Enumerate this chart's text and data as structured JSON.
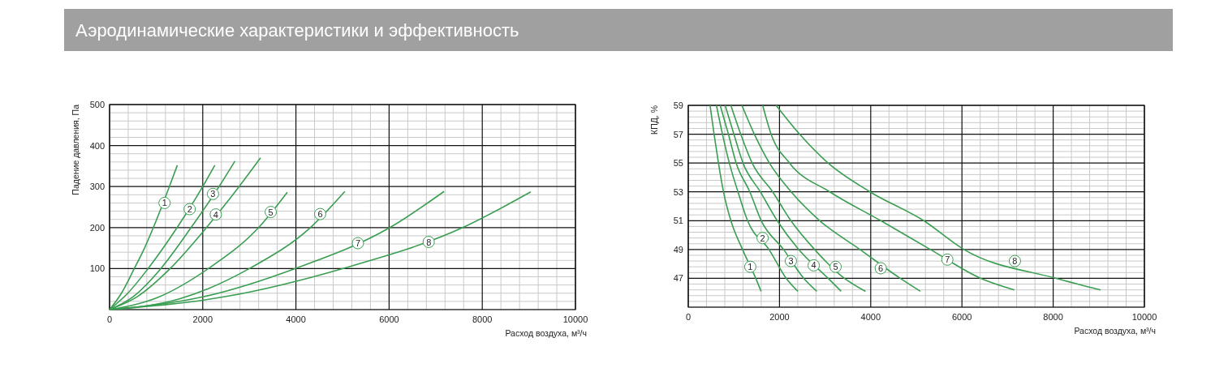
{
  "chart_data": [
    {
      "type": "line",
      "title": "Аэродинамические характеристики и эффективность",
      "xlabel": "Расход воздуха, м³/ч",
      "ylabel": "Падение давления, Па",
      "grid": true,
      "annotations": [
        {
          "text": "1",
          "x": 1180,
          "y": 260
        },
        {
          "text": "2",
          "x": 1720,
          "y": 245
        },
        {
          "text": "3",
          "x": 2220,
          "y": 282
        },
        {
          "text": "4",
          "x": 2280,
          "y": 232
        },
        {
          "text": "5",
          "x": 3460,
          "y": 238
        },
        {
          "text": "6",
          "x": 4520,
          "y": 233
        },
        {
          "text": "7",
          "x": 5330,
          "y": 162
        },
        {
          "text": "8",
          "x": 6850,
          "y": 165
        }
      ],
      "xlim": [
        0,
        10000
      ],
      "ylim": [
        0,
        500
      ],
      "xticks": [
        0,
        {
          "value": 400,
          "label": null
        },
        {
          "value": 800,
          "label": null
        },
        {
          "value": 1200,
          "label": null
        },
        {
          "value": 1600,
          "label": null
        },
        2000,
        {
          "value": 2400,
          "label": null
        },
        {
          "value": 2800,
          "label": null
        },
        {
          "value": 3200,
          "label": null
        },
        {
          "value": 3600,
          "label": null
        },
        4000,
        {
          "value": 4400,
          "label": null
        },
        {
          "value": 4800,
          "label": null
        },
        {
          "value": 5200,
          "label": null
        },
        {
          "value": 5600,
          "label": null
        },
        6000,
        {
          "value": 6400,
          "label": null
        },
        {
          "value": 6800,
          "label": null
        },
        {
          "value": 7200,
          "label": null
        },
        {
          "value": 7600,
          "label": null
        },
        8000,
        {
          "value": 8400,
          "label": null
        },
        {
          "value": 8800,
          "label": null
        },
        {
          "value": 9200,
          "label": null
        },
        {
          "value": 9600,
          "label": null
        },
        10000
      ],
      "yticks": [
        {
          "value": 0,
          "label": null
        },
        {
          "value": 20,
          "label": null
        },
        {
          "value": 40,
          "label": null
        },
        {
          "value": 60,
          "label": null
        },
        {
          "value": 80,
          "label": null
        },
        100,
        {
          "value": 120,
          "label": null
        },
        {
          "value": 140,
          "label": null
        },
        {
          "value": 160,
          "label": null
        },
        {
          "value": 180,
          "label": null
        },
        200,
        {
          "value": 220,
          "label": null
        },
        {
          "value": 240,
          "label": null
        },
        {
          "value": 260,
          "label": null
        },
        {
          "value": 280,
          "label": null
        },
        300,
        {
          "value": 320,
          "label": null
        },
        {
          "value": 340,
          "label": null
        },
        {
          "value": 360,
          "label": null
        },
        {
          "value": 380,
          "label": null
        },
        400,
        {
          "value": 420,
          "label": null
        },
        {
          "value": 440,
          "label": null
        },
        {
          "value": 460,
          "label": null
        },
        {
          "value": 480,
          "label": null
        },
        500
      ],
      "series": [
        {
          "color": "#3a9e52",
          "x": [
            0,
            250,
            530,
            750,
            940,
            1300,
            1454
          ],
          "values": [
            0,
            39,
            100,
            150,
            200,
            305,
            352
          ]
        },
        {
          "color": "#3a9e52",
          "x": [
            0,
            400,
            826,
            1450,
            2000,
            2260
          ],
          "values": [
            0,
            41,
            100,
            200,
            300,
            352
          ]
        },
        {
          "color": "#3a9e52",
          "x": [
            0,
            500,
            1100,
            1750,
            2350,
            2690
          ],
          "values": [
            0,
            31,
            100,
            200,
            300,
            362
          ]
        },
        {
          "color": "#3a9e52",
          "x": [
            0,
            600,
            1300,
            2080,
            2780,
            3240
          ],
          "values": [
            0,
            32,
            100,
            200,
            300,
            370
          ]
        },
        {
          "color": "#3a9e52",
          "x": [
            0,
            1000,
            2120,
            3200,
            3815
          ],
          "values": [
            0,
            28,
            100,
            200,
            286
          ]
        },
        {
          "color": "#3a9e52",
          "x": [
            0,
            1500,
            3000,
            4310,
            5050
          ],
          "values": [
            0,
            26,
            100,
            200,
            288
          ]
        },
        {
          "color": "#3a9e52",
          "x": [
            0,
            2000,
            3980,
            6015,
            7180
          ],
          "values": [
            0,
            31,
            100,
            200,
            288
          ]
        },
        {
          "color": "#3a9e52",
          "x": [
            0,
            2500,
            5000,
            7580,
            9040
          ],
          "values": [
            0,
            32,
            100,
            200,
            287
          ]
        }
      ]
    },
    {
      "type": "line",
      "xlabel": "Расход воздуха, м³/ч",
      "ylabel": "КПД, %",
      "grid": true,
      "annotations": [
        {
          "text": "1",
          "x": 1360,
          "y": 47.8
        },
        {
          "text": "2",
          "x": 1630,
          "y": 49.8
        },
        {
          "text": "3",
          "x": 2250,
          "y": 48.2
        },
        {
          "text": "4",
          "x": 2750,
          "y": 47.9
        },
        {
          "text": "5",
          "x": 3230,
          "y": 47.8
        },
        {
          "text": "6",
          "x": 4220,
          "y": 47.7
        },
        {
          "text": "7",
          "x": 5680,
          "y": 48.3
        },
        {
          "text": "8",
          "x": 7160,
          "y": 48.2
        }
      ],
      "xlim": [
        0,
        10000
      ],
      "ylim": [
        45,
        59
      ],
      "xticks": [
        0,
        {
          "value": 400,
          "label": null
        },
        {
          "value": 800,
          "label": null
        },
        {
          "value": 1200,
          "label": null
        },
        {
          "value": 1600,
          "label": null
        },
        2000,
        {
          "value": 2400,
          "label": null
        },
        {
          "value": 2800,
          "label": null
        },
        {
          "value": 3200,
          "label": null
        },
        {
          "value": 3600,
          "label": null
        },
        4000,
        {
          "value": 4400,
          "label": null
        },
        {
          "value": 4800,
          "label": null
        },
        {
          "value": 5200,
          "label": null
        },
        {
          "value": 5600,
          "label": null
        },
        6000,
        {
          "value": 6400,
          "label": null
        },
        {
          "value": 6800,
          "label": null
        },
        {
          "value": 7200,
          "label": null
        },
        {
          "value": 7600,
          "label": null
        },
        8000,
        {
          "value": 8400,
          "label": null
        },
        {
          "value": 8800,
          "label": null
        },
        {
          "value": 9200,
          "label": null
        },
        {
          "value": 9600,
          "label": null
        },
        10000
      ],
      "yticks": [
        {
          "value": 45,
          "label": null
        },
        {
          "value": 45.4,
          "label": null
        },
        {
          "value": 45.8,
          "label": null
        },
        {
          "value": 46.2,
          "label": null
        },
        {
          "value": 46.6,
          "label": null
        },
        47,
        {
          "value": 47.4,
          "label": null
        },
        {
          "value": 47.8,
          "label": null
        },
        {
          "value": 48.2,
          "label": null
        },
        {
          "value": 48.6,
          "label": null
        },
        49,
        {
          "value": 49.4,
          "label": null
        },
        {
          "value": 49.8,
          "label": null
        },
        {
          "value": 50.2,
          "label": null
        },
        {
          "value": 50.6,
          "label": null
        },
        51,
        {
          "value": 51.4,
          "label": null
        },
        {
          "value": 51.8,
          "label": null
        },
        {
          "value": 52.2,
          "label": null
        },
        {
          "value": 52.6,
          "label": null
        },
        53,
        {
          "value": 53.4,
          "label": null
        },
        {
          "value": 53.8,
          "label": null
        },
        {
          "value": 54.2,
          "label": null
        },
        {
          "value": 54.6,
          "label": null
        },
        55,
        {
          "value": 55.4,
          "label": null
        },
        {
          "value": 55.8,
          "label": null
        },
        {
          "value": 56.2,
          "label": null
        },
        {
          "value": 56.6,
          "label": null
        },
        57,
        {
          "value": 57.4,
          "label": null
        },
        {
          "value": 57.8,
          "label": null
        },
        {
          "value": 58.2,
          "label": null
        },
        {
          "value": 58.6,
          "label": null
        },
        59
      ],
      "series": [
        {
          "color": "#3a9e52",
          "x": [
            478,
            566,
            662,
            772,
            934,
            1190,
            1480,
            1596
          ],
          "values": [
            59,
            57,
            55,
            53,
            51,
            49,
            47,
            46.1
          ]
        },
        {
          "color": "#3a9e52",
          "x": [
            618,
            750,
            900,
            1090,
            1300,
            1770,
            2148,
            2403
          ],
          "values": [
            59,
            57,
            55,
            53,
            51,
            49,
            47,
            46.1
          ]
        },
        {
          "color": "#3a9e52",
          "x": [
            700,
            880,
            1050,
            1350,
            1600,
            2090,
            2533,
            2818
          ],
          "values": [
            59,
            57,
            55,
            53,
            51,
            49,
            47,
            46.1
          ]
        },
        {
          "color": "#3a9e52",
          "x": [
            809,
            1000,
            1200,
            1580,
            1950,
            2420,
            3067,
            3352
          ],
          "values": [
            59,
            57,
            55,
            53,
            51,
            49,
            47,
            46.1
          ]
        },
        {
          "color": "#3a9e52",
          "x": [
            934,
            1150,
            1400,
            1850,
            2250,
            2770,
            3422,
            3885
          ],
          "values": [
            59,
            57,
            55,
            53,
            51,
            49,
            47,
            46.1
          ]
        },
        {
          "color": "#3a9e52",
          "x": [
            1176,
            1449,
            1779,
            2257,
            2882,
            3765,
            4647,
            5088
          ],
          "values": [
            59,
            57,
            55,
            53,
            51,
            49,
            47,
            46.1
          ]
        },
        {
          "color": "#3a9e52",
          "x": [
            1632,
            1816,
            2220,
            3103,
            4220,
            5309,
            6412,
            7150
          ],
          "values": [
            59,
            57,
            55,
            53,
            51,
            49,
            47,
            46.2
          ]
        },
        {
          "color": "#3a9e52",
          "x": [
            1926,
            2441,
            3066,
            3985,
            5162,
            6044,
            8066,
            9040
          ],
          "values": [
            59,
            57,
            55,
            53,
            51,
            49,
            47,
            46.2
          ]
        }
      ]
    }
  ]
}
